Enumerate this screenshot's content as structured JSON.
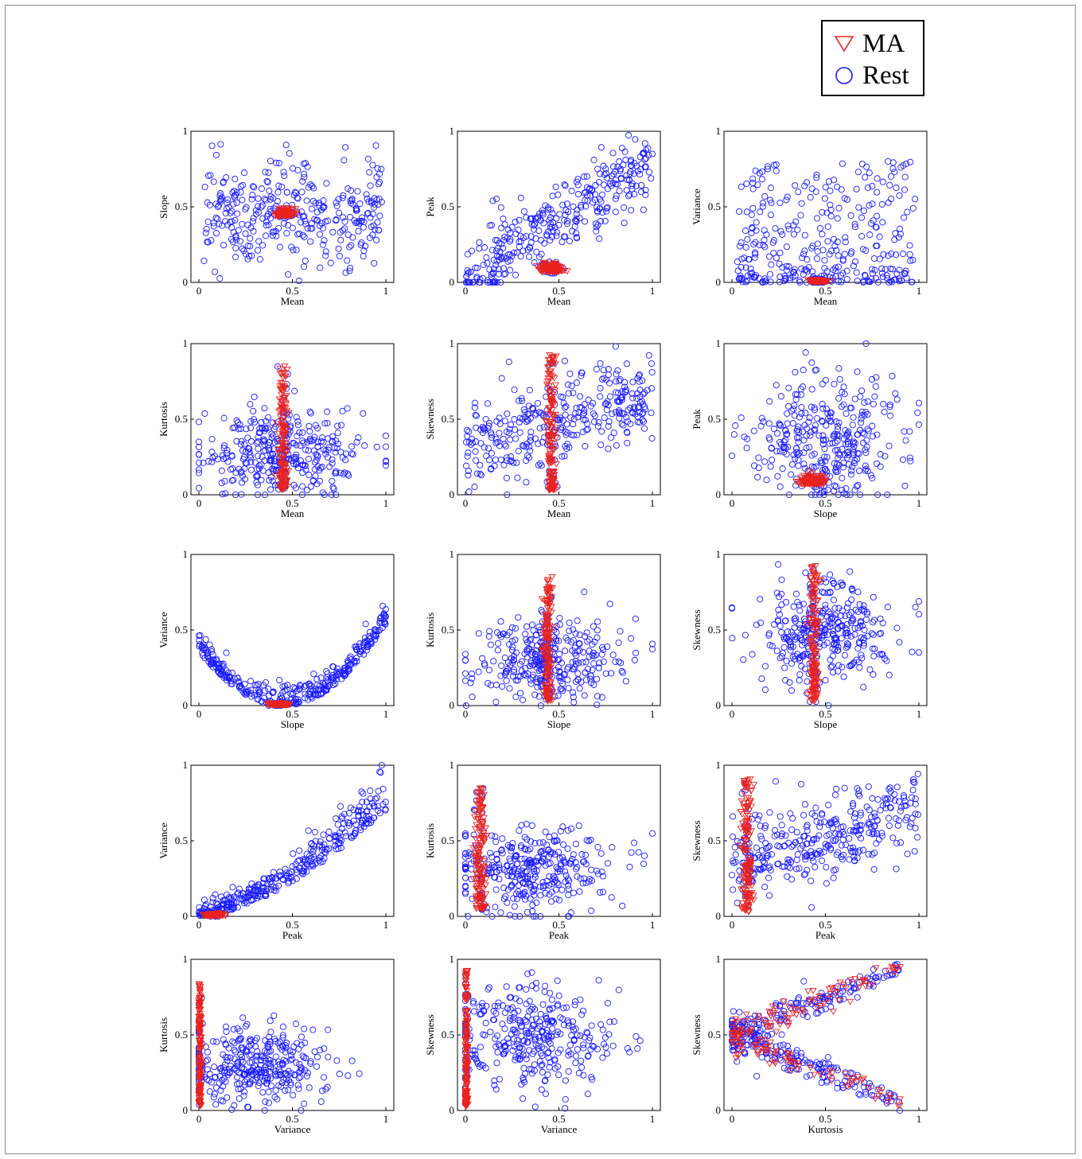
{
  "legend": {
    "ma_label": "MA",
    "rest_label": "Rest"
  },
  "colors": {
    "ma": "#e8231f",
    "rest": "#1a1aff",
    "axis": "#000000"
  },
  "chart_data": [
    {
      "type": "scatter",
      "xlabel": "Mean",
      "ylabel": "Slope",
      "xlim": [
        0,
        1
      ],
      "ylim": [
        0,
        1
      ],
      "xticks": [
        "0",
        "0.5",
        "1"
      ],
      "yticks": [
        "0",
        "0.5",
        "1"
      ],
      "grid": false,
      "rest_dist": {
        "type": "uniform",
        "x": [
          0.02,
          0.98
        ],
        "y": [
          0.02,
          0.9
        ]
      },
      "ma_dist": {
        "type": "cluster",
        "cx": 0.46,
        "cy": 0.44,
        "sx": 0.025,
        "sy": 0.02
      },
      "series": [
        {
          "name": "MA"
        },
        {
          "name": "Rest"
        }
      ]
    },
    {
      "type": "scatter",
      "xlabel": "Mean",
      "ylabel": "Peak",
      "xlim": [
        0,
        1
      ],
      "ylim": [
        0,
        1
      ],
      "xticks": [
        "0",
        "0.5",
        "1"
      ],
      "yticks": [
        "0",
        "0.5",
        "1"
      ],
      "grid": false,
      "rest_dist": {
        "type": "trend",
        "slope": 0.75,
        "intercept": 0.05,
        "noise": 0.12
      },
      "ma_dist": {
        "type": "cluster",
        "cx": 0.46,
        "cy": 0.07,
        "sx": 0.03,
        "sy": 0.025
      },
      "series": [
        {
          "name": "MA"
        },
        {
          "name": "Rest"
        }
      ]
    },
    {
      "type": "scatter",
      "xlabel": "Mean",
      "ylabel": "Variance",
      "xlim": [
        0,
        1
      ],
      "ylim": [
        0,
        1
      ],
      "xticks": [
        "0",
        "0.5",
        "1"
      ],
      "yticks": [
        "0",
        "0.5",
        "1"
      ],
      "grid": false,
      "rest_dist": {
        "type": "skew_low",
        "x": [
          0.02,
          0.98
        ],
        "ymax": 0.8
      },
      "ma_dist": {
        "type": "cluster",
        "cx": 0.46,
        "cy": 0.005,
        "sx": 0.025,
        "sy": 0.005
      },
      "series": [
        {
          "name": "MA"
        },
        {
          "name": "Rest"
        }
      ]
    },
    {
      "type": "scatter",
      "xlabel": "Mean",
      "ylabel": "Kurtosis",
      "xlim": [
        0,
        1
      ],
      "ylim": [
        0,
        1
      ],
      "xticks": [
        "0",
        "0.5",
        "1"
      ],
      "yticks": [
        "0",
        "0.5",
        "1"
      ],
      "grid": false,
      "rest_dist": {
        "type": "gauss",
        "cx": 0.45,
        "cy": 0.28,
        "sx": 0.22,
        "sy": 0.15
      },
      "ma_dist": {
        "type": "vstrip",
        "cx": 0.45,
        "sx": 0.012,
        "y": [
          0.03,
          0.85
        ]
      },
      "series": [
        {
          "name": "MA"
        },
        {
          "name": "Rest"
        }
      ]
    },
    {
      "type": "scatter",
      "xlabel": "Mean",
      "ylabel": "Skewness",
      "xlim": [
        0,
        1
      ],
      "ylim": [
        0,
        1
      ],
      "xticks": [
        "0",
        "0.5",
        "1"
      ],
      "yticks": [
        "0",
        "0.5",
        "1"
      ],
      "grid": false,
      "rest_dist": {
        "type": "trend",
        "slope": 0.35,
        "intercept": 0.3,
        "noise": 0.14
      },
      "ma_dist": {
        "type": "vstrip",
        "cx": 0.46,
        "sx": 0.012,
        "y": [
          0.03,
          0.93
        ]
      },
      "series": [
        {
          "name": "MA"
        },
        {
          "name": "Rest"
        }
      ]
    },
    {
      "type": "scatter",
      "xlabel": "Slope",
      "ylabel": "Peak",
      "xlim": [
        0,
        1
      ],
      "ylim": [
        0,
        1
      ],
      "xticks": [
        "0",
        "0.5",
        "1"
      ],
      "yticks": [
        "0",
        "0.5",
        "1"
      ],
      "grid": false,
      "rest_dist": {
        "type": "gauss",
        "cx": 0.48,
        "cy": 0.35,
        "sx": 0.2,
        "sy": 0.2
      },
      "ma_dist": {
        "type": "cluster",
        "cx": 0.43,
        "cy": 0.07,
        "sx": 0.03,
        "sy": 0.025
      },
      "series": [
        {
          "name": "MA"
        },
        {
          "name": "Rest"
        }
      ]
    },
    {
      "type": "scatter",
      "xlabel": "Slope",
      "ylabel": "Variance",
      "xlim": [
        0,
        1
      ],
      "ylim": [
        0,
        1
      ],
      "xticks": [
        "0",
        "0.5",
        "1"
      ],
      "yticks": [
        "0",
        "0.5",
        "1"
      ],
      "grid": false,
      "rest_dist": {
        "type": "parabola",
        "cx": 0.45,
        "a": 1.8,
        "noise": 0.06
      },
      "ma_dist": {
        "type": "cluster",
        "cx": 0.43,
        "cy": 0.005,
        "sx": 0.025,
        "sy": 0.005
      },
      "series": [
        {
          "name": "MA"
        },
        {
          "name": "Rest"
        }
      ]
    },
    {
      "type": "scatter",
      "xlabel": "Slope",
      "ylabel": "Kurtosis",
      "xlim": [
        0,
        1
      ],
      "ylim": [
        0,
        1
      ],
      "xticks": [
        "0",
        "0.5",
        "1"
      ],
      "yticks": [
        "0",
        "0.5",
        "1"
      ],
      "grid": false,
      "rest_dist": {
        "type": "gauss",
        "cx": 0.45,
        "cy": 0.3,
        "sx": 0.18,
        "sy": 0.14
      },
      "ma_dist": {
        "type": "vstrip",
        "cx": 0.44,
        "sx": 0.012,
        "y": [
          0.03,
          0.85
        ]
      },
      "series": [
        {
          "name": "MA"
        },
        {
          "name": "Rest"
        }
      ]
    },
    {
      "type": "scatter",
      "xlabel": "Slope",
      "ylabel": "Skewness",
      "xlim": [
        0,
        1
      ],
      "ylim": [
        0,
        1
      ],
      "xticks": [
        "0",
        "0.5",
        "1"
      ],
      "yticks": [
        "0",
        "0.5",
        "1"
      ],
      "grid": false,
      "rest_dist": {
        "type": "gauss",
        "cx": 0.48,
        "cy": 0.48,
        "sx": 0.18,
        "sy": 0.17
      },
      "ma_dist": {
        "type": "vstrip",
        "cx": 0.44,
        "sx": 0.012,
        "y": [
          0.03,
          0.93
        ]
      },
      "series": [
        {
          "name": "MA"
        },
        {
          "name": "Rest"
        }
      ]
    },
    {
      "type": "scatter",
      "xlabel": "Peak",
      "ylabel": "Variance",
      "xlim": [
        0,
        1
      ],
      "ylim": [
        0,
        1
      ],
      "xticks": [
        "0",
        "0.5",
        "1"
      ],
      "yticks": [
        "0",
        "0.5",
        "1"
      ],
      "grid": false,
      "rest_dist": {
        "type": "curve",
        "k": 0.7,
        "noise": 0.1
      },
      "ma_dist": {
        "type": "cluster",
        "cx": 0.08,
        "cy": 0.005,
        "sx": 0.025,
        "sy": 0.005
      },
      "series": [
        {
          "name": "MA"
        },
        {
          "name": "Rest"
        }
      ]
    },
    {
      "type": "scatter",
      "xlabel": "Peak",
      "ylabel": "Kurtosis",
      "xlim": [
        0,
        1
      ],
      "ylim": [
        0,
        1
      ],
      "xticks": [
        "0",
        "0.5",
        "1"
      ],
      "yticks": [
        "0",
        "0.5",
        "1"
      ],
      "grid": false,
      "rest_dist": {
        "type": "gauss",
        "cx": 0.35,
        "cy": 0.3,
        "sx": 0.22,
        "sy": 0.14
      },
      "ma_dist": {
        "type": "vstrip",
        "cx": 0.08,
        "sx": 0.015,
        "y": [
          0.05,
          0.85
        ]
      },
      "series": [
        {
          "name": "MA"
        },
        {
          "name": "Rest"
        }
      ]
    },
    {
      "type": "scatter",
      "xlabel": "Peak",
      "ylabel": "Skewness",
      "xlim": [
        0,
        1
      ],
      "ylim": [
        0,
        1
      ],
      "xticks": [
        "0",
        "0.5",
        "1"
      ],
      "yticks": [
        "0",
        "0.5",
        "1"
      ],
      "grid": false,
      "rest_dist": {
        "type": "trend",
        "slope": 0.35,
        "intercept": 0.35,
        "noise": 0.14
      },
      "ma_dist": {
        "type": "vstrip",
        "cx": 0.08,
        "sx": 0.015,
        "y": [
          0.03,
          0.93
        ]
      },
      "series": [
        {
          "name": "MA"
        },
        {
          "name": "Rest"
        }
      ]
    },
    {
      "type": "scatter",
      "xlabel": "Variance",
      "ylabel": "Kurtosis",
      "xlim": [
        0,
        1
      ],
      "ylim": [
        0,
        1
      ],
      "xticks": [
        "0",
        "0.5",
        "1"
      ],
      "yticks": [
        "0",
        "0.5",
        "1"
      ],
      "grid": false,
      "rest_dist": {
        "type": "gauss",
        "cx": 0.3,
        "cy": 0.3,
        "sx": 0.2,
        "sy": 0.13
      },
      "ma_dist": {
        "type": "vstrip",
        "cx": 0.005,
        "sx": 0.004,
        "y": [
          0.03,
          0.85
        ]
      },
      "series": [
        {
          "name": "MA"
        },
        {
          "name": "Rest"
        }
      ]
    },
    {
      "type": "scatter",
      "xlabel": "Variance",
      "ylabel": "Skewness",
      "xlim": [
        0,
        1
      ],
      "ylim": [
        0,
        1
      ],
      "xticks": [
        "0",
        "0.5",
        "1"
      ],
      "yticks": [
        "0",
        "0.5",
        "1"
      ],
      "grid": false,
      "rest_dist": {
        "type": "gauss",
        "cx": 0.35,
        "cy": 0.5,
        "sx": 0.22,
        "sy": 0.17
      },
      "ma_dist": {
        "type": "vstrip",
        "cx": 0.005,
        "sx": 0.004,
        "y": [
          0.03,
          0.93
        ]
      },
      "series": [
        {
          "name": "MA"
        },
        {
          "name": "Rest"
        }
      ]
    },
    {
      "type": "scatter",
      "xlabel": "Kurtosis",
      "ylabel": "Skewness",
      "xlim": [
        0,
        1
      ],
      "ylim": [
        0,
        1
      ],
      "xticks": [
        "0",
        "0.5",
        "1"
      ],
      "yticks": [
        "0",
        "0.5",
        "1"
      ],
      "grid": false,
      "rest_dist": {
        "type": "fan",
        "noise": 0.06
      },
      "ma_dist": {
        "type": "fan",
        "noise": 0.05
      },
      "series": [
        {
          "name": "MA"
        },
        {
          "name": "Rest"
        }
      ]
    }
  ]
}
